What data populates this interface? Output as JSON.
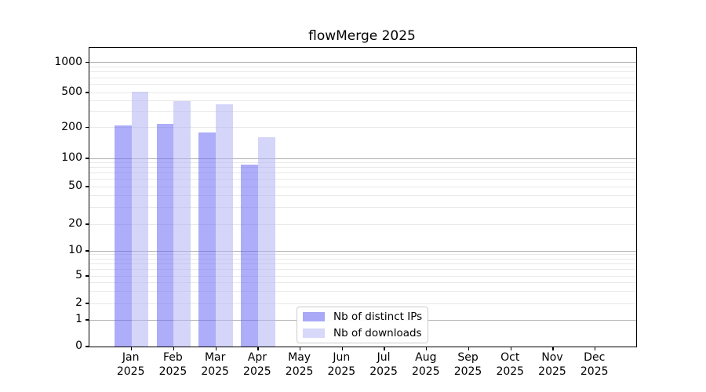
{
  "title": "flowMerge 2025",
  "chart_data": {
    "type": "bar",
    "title": "flowMerge 2025",
    "xlabel": "",
    "ylabel": "",
    "y_scale": "symlog",
    "grid": true,
    "legend_position": "bottom-center",
    "categories": [
      "Jan",
      "Feb",
      "Mar",
      "Apr",
      "May",
      "Jun",
      "Jul",
      "Aug",
      "Sep",
      "Oct",
      "Nov",
      "Dec"
    ],
    "category_year": "2025",
    "series": [
      {
        "name": "Nb of distinct IPs",
        "color": "#a9a9f7",
        "fill": "rgba(100,100,243,0.53)",
        "values": [
          210,
          220,
          180,
          85,
          null,
          null,
          null,
          null,
          null,
          null,
          null,
          null
        ]
      },
      {
        "name": "Nb of downloads",
        "color": "#d8d8fa",
        "fill": "rgba(178,178,246,0.55)",
        "values": [
          505,
          400,
          370,
          160,
          null,
          null,
          null,
          null,
          null,
          null,
          null,
          null
        ]
      }
    ],
    "y_axis": {
      "tick_values": [
        0,
        1,
        2,
        5,
        10,
        20,
        50,
        100,
        200,
        500,
        1000
      ],
      "tick_labels": [
        "0",
        "1",
        "2",
        "5",
        "10",
        "20",
        "50",
        "100",
        "200",
        "500",
        "1000"
      ],
      "major_grid_values": [
        1,
        10,
        100,
        1000
      ],
      "minor_grid_values": [
        2,
        3,
        4,
        5,
        6,
        7,
        8,
        9,
        20,
        30,
        40,
        50,
        60,
        70,
        80,
        90,
        200,
        300,
        400,
        500,
        600,
        700,
        800,
        900
      ],
      "ylim": [
        0,
        1500
      ]
    },
    "colors": {
      "grid_major": "#b0b0b0",
      "grid_minor": "#e9e9e9",
      "axis": "#000000",
      "legend_border": "#cccccc"
    }
  }
}
